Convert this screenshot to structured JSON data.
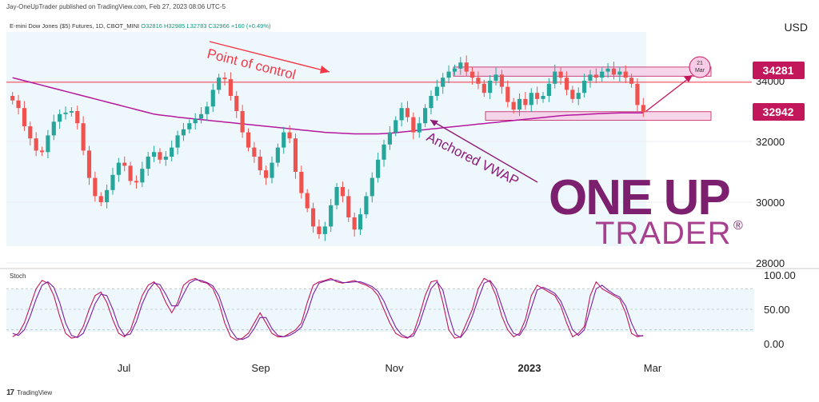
{
  "publish_line": "Jay-OneUpTrader published on TradingView.com, Feb 27, 2023 08:06 UTC-5",
  "currency": "USD",
  "legend": {
    "symbol": "E-mini Dow Jones ($5) Futures, 1D, CBOT_MINI",
    "o": "O32816",
    "h": "H32985",
    "l": "L32783",
    "c": "C32966",
    "change": "+160 (+0.49%)"
  },
  "stoch_label": "Stoch",
  "tv_brand": "TradingView",
  "annotations": {
    "poc": "Point of control",
    "vwap": "Anchored VWAP",
    "date_top": "21",
    "date_bottom": "Mar"
  },
  "price_tags": {
    "upper": "34281",
    "lower": "32942"
  },
  "brand": {
    "line1": "ONE UP",
    "line2": "TRADER",
    "mark": "®"
  },
  "colors": {
    "up": "#26a69a",
    "down": "#ef5350",
    "vwap": "#b5179e",
    "poc": "#f23645",
    "accent": "#c2185b",
    "zone": "#f6c8e3",
    "stoch_k": "#c2185b",
    "stoch_d": "#7b1fa2",
    "bg_shade": "#eef7fc"
  },
  "chart_data": [
    {
      "type": "candlestick",
      "title": "E-mini Dow Jones ($5) Futures, 1D, CBOT_MINI",
      "ylim": [
        28000,
        36000
      ],
      "y_ticks": [
        "28000",
        "30000",
        "32000",
        "34000"
      ],
      "x_ticks": [
        "Jul",
        "Sep",
        "Nov",
        "2023",
        "Mar"
      ],
      "close_series": [
        33350,
        33100,
        32500,
        32100,
        31700,
        31650,
        32200,
        32650,
        32900,
        32950,
        33000,
        32600,
        31700,
        30800,
        30200,
        30000,
        30400,
        30900,
        31300,
        31200,
        30700,
        30650,
        31100,
        31500,
        31650,
        31400,
        31500,
        31800,
        32200,
        32400,
        32600,
        32750,
        32900,
        33150,
        33700,
        34100,
        34050,
        33500,
        33000,
        32300,
        31800,
        31500,
        31050,
        30800,
        31300,
        31800,
        32300,
        32100,
        31000,
        30300,
        29800,
        29200,
        28950,
        29200,
        29900,
        30500,
        30200,
        29500,
        29100,
        29600,
        30200,
        30800,
        31400,
        31900,
        32300,
        32700,
        33100,
        32800,
        32300,
        32600,
        33100,
        33500,
        33800,
        34100,
        34300,
        34400,
        34600,
        34300,
        34100,
        33900,
        33600,
        34000,
        34200,
        33800,
        33300,
        33050,
        33400,
        33200,
        33600,
        33400,
        33500,
        33900,
        34300,
        34100,
        33700,
        33400,
        33600,
        34000,
        34200,
        34100,
        34300,
        34400,
        34200,
        34300,
        34100,
        33900,
        33200,
        32960
      ],
      "vwap_series": [
        34100,
        34050,
        34000,
        33950,
        33900,
        33850,
        33800,
        33750,
        33700,
        33650,
        33600,
        33550,
        33500,
        33450,
        33400,
        33350,
        33300,
        33250,
        33200,
        33150,
        33100,
        33050,
        33000,
        32950,
        32900,
        32870,
        32850,
        32830,
        32800,
        32780,
        32760,
        32740,
        32720,
        32700,
        32680,
        32660,
        32640,
        32620,
        32600,
        32580,
        32560,
        32540,
        32520,
        32500,
        32480,
        32460,
        32440,
        32420,
        32400,
        32380,
        32360,
        32340,
        32320,
        32300,
        32290,
        32280,
        32270,
        32260,
        32250,
        32250,
        32250,
        32250,
        32250,
        32260,
        32270,
        32290,
        32310,
        32330,
        32350,
        32370,
        32390,
        32410,
        32430,
        32450,
        32470,
        32490,
        32510,
        32530,
        32550,
        32570,
        32590,
        32610,
        32630,
        32650,
        32670,
        32690,
        32710,
        32730,
        32750,
        32770,
        32790,
        32810,
        32830,
        32850,
        32860,
        32870,
        32880,
        32890,
        32900,
        32910,
        32920,
        32930,
        32935,
        32940,
        32942,
        32942,
        32942,
        32942
      ],
      "point_of_control": 33950,
      "resistance_zone": [
        34150,
        34450
      ],
      "support_zone": [
        32700,
        32980
      ],
      "projection_target": 34281,
      "projection_date": "21 Mar"
    },
    {
      "type": "line",
      "title": "Stoch",
      "ylim": [
        0,
        100
      ],
      "y_ticks": [
        "0.00",
        "50.00",
        "100.00"
      ],
      "bands": [
        20,
        50,
        80
      ],
      "series": [
        {
          "values": [
            10,
            15,
            30,
            55,
            80,
            92,
            88,
            70,
            40,
            15,
            8,
            10,
            25,
            50,
            70,
            75,
            60,
            35,
            15,
            10,
            20,
            45,
            70,
            85,
            90,
            80,
            60,
            45,
            60,
            85,
            92,
            95,
            90,
            88,
            80,
            60,
            30,
            10,
            5,
            8,
            15,
            30,
            45,
            30,
            15,
            10,
            10,
            15,
            20,
            30,
            60,
            85,
            90,
            92,
            95,
            90,
            88,
            90,
            92,
            88,
            85,
            80,
            70,
            50,
            30,
            15,
            10,
            8,
            15,
            40,
            70,
            90,
            92,
            60,
            20,
            8,
            10,
            30,
            50,
            80,
            95,
            90,
            70,
            40,
            20,
            10,
            15,
            35,
            70,
            85,
            80,
            75,
            70,
            55,
            30,
            10,
            15,
            25,
            70,
            90,
            80,
            75,
            70,
            65,
            45,
            15,
            10,
            12
          ]
        },
        {
          "values": [
            15,
            12,
            20,
            40,
            65,
            85,
            90,
            82,
            60,
            30,
            12,
            9,
            15,
            35,
            58,
            72,
            70,
            50,
            25,
            12,
            14,
            32,
            58,
            77,
            88,
            86,
            72,
            55,
            55,
            72,
            88,
            93,
            92,
            89,
            84,
            70,
            45,
            20,
            8,
            6,
            10,
            22,
            38,
            38,
            22,
            12,
            10,
            12,
            17,
            24,
            45,
            72,
            88,
            91,
            93,
            92,
            89,
            89,
            90,
            90,
            87,
            83,
            76,
            62,
            42,
            24,
            13,
            9,
            11,
            28,
            55,
            80,
            90,
            78,
            42,
            14,
            9,
            20,
            40,
            65,
            88,
            92,
            80,
            55,
            30,
            15,
            12,
            25,
            52,
            78,
            82,
            78,
            73,
            62,
            42,
            20,
            12,
            20,
            50,
            80,
            85,
            78,
            72,
            68,
            55,
            30,
            12,
            11
          ]
        }
      ]
    }
  ]
}
